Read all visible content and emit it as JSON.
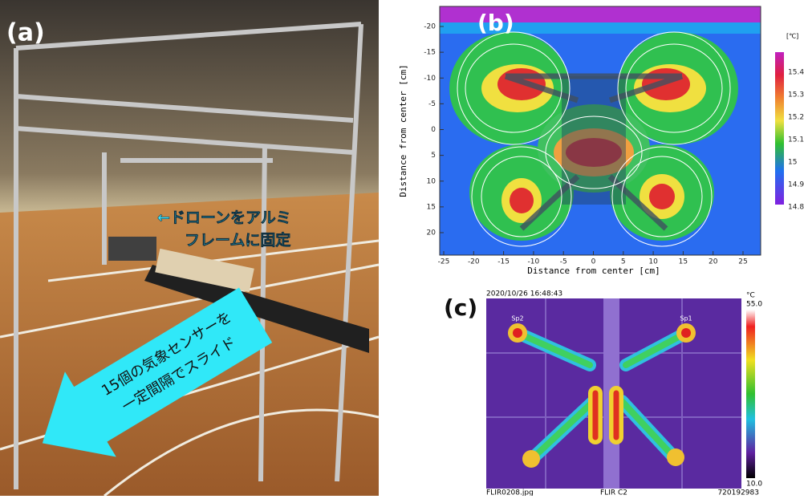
{
  "panel_a": {
    "label": "(a)",
    "callout_1": [
      "←ドローンをアルミ",
      "フレームに固定"
    ],
    "callout_2": [
      "15個の気象センサーを",
      "一定間隔でスライド"
    ]
  },
  "panel_b": {
    "label": "(b)",
    "x_label": "Distance from center [cm]",
    "y_label": "Distance from center [cm]",
    "x_ticks": [
      -25,
      -20,
      -15,
      -10,
      -5,
      0,
      5,
      10,
      15,
      20,
      25
    ],
    "y_ticks": [
      -20,
      -15,
      -10,
      -5,
      0,
      5,
      10,
      15,
      20
    ],
    "colorbar_unit": "[℃]",
    "colorbar_ticks": [
      15.4,
      15.3,
      15.2,
      15.1,
      15,
      14.9,
      14.8
    ]
  },
  "panel_c": {
    "label": "(c)",
    "timestamp": "2020/10/26 16:48:43",
    "unit": "°C",
    "max": "55.0",
    "min": "10.0",
    "spots": [
      "Sp1",
      "Sp2"
    ],
    "footer": [
      "FLIR0208.jpg",
      "FLIR C2",
      "720192983"
    ]
  }
}
